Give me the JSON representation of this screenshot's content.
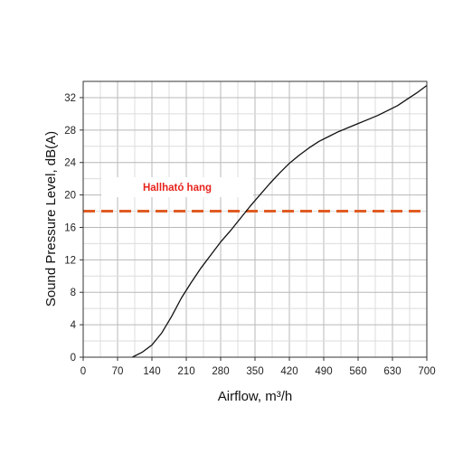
{
  "chart_data": {
    "type": "line",
    "title": "",
    "xlabel": "Airflow, m³/h",
    "ylabel": "Sound Pressure Level, dB(A)",
    "xlim": [
      0,
      700
    ],
    "ylim": [
      0,
      34
    ],
    "x_ticks": [
      0,
      70,
      140,
      210,
      280,
      350,
      420,
      490,
      560,
      630,
      700
    ],
    "y_ticks": [
      0,
      4,
      8,
      12,
      16,
      20,
      24,
      28,
      32
    ],
    "grid": true,
    "series": [
      {
        "name": "",
        "color": "#111111",
        "x": [
          100,
          120,
          140,
          160,
          180,
          200,
          220,
          240,
          260,
          280,
          300,
          320,
          340,
          360,
          380,
          400,
          420,
          440,
          460,
          480,
          500,
          520,
          540,
          560,
          580,
          600,
          620,
          640,
          660,
          680,
          700
        ],
        "y": [
          0,
          0.6,
          1.5,
          3.0,
          5.0,
          7.3,
          9.2,
          11.0,
          12.6,
          14.2,
          15.6,
          17.1,
          18.6,
          20.0,
          21.4,
          22.7,
          23.9,
          24.9,
          25.8,
          26.6,
          27.2,
          27.8,
          28.3,
          28.8,
          29.3,
          29.8,
          30.4,
          31.0,
          31.8,
          32.6,
          33.5
        ]
      }
    ],
    "reference_line": {
      "y": 18,
      "color": "#e05c23",
      "style": "dashed"
    },
    "annotation": {
      "text": "Hallható hang",
      "color": "#e8231c"
    }
  }
}
